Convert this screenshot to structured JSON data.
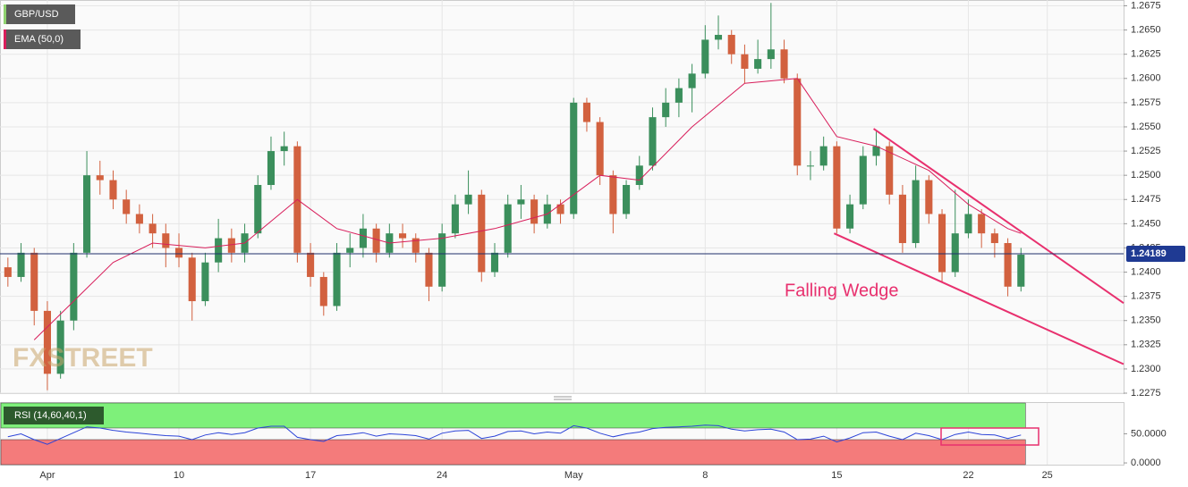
{
  "chart_data": {
    "type": "candlestick",
    "symbol": "GBP/USD",
    "indicator": "EMA (50,0)",
    "watermark": "FXSTREET",
    "x": [
      -1.5,
      -1,
      -0.5,
      0,
      0.5,
      1,
      1.5,
      2,
      2.5,
      3,
      3.5,
      4,
      4.5,
      5,
      5.5,
      6,
      6.5,
      7,
      7.5,
      8,
      8.5,
      9,
      9.5,
      10,
      10.5,
      11,
      11.5,
      12,
      12.5,
      13,
      13.5,
      14,
      14.5,
      15,
      15.5,
      16,
      16.5,
      17,
      17.5,
      18,
      18.5,
      19,
      19.5,
      20,
      20.5,
      21,
      21.5,
      22,
      22.5,
      23,
      23.5,
      24,
      24.5,
      25,
      25.5,
      26,
      26.5,
      27,
      27.5,
      28,
      28.5,
      29,
      29.5,
      30,
      30.5,
      31,
      31.5,
      32,
      32.5,
      33,
      33.5,
      34,
      34.5,
      35,
      35.5,
      36,
      36.5,
      37
    ],
    "ohlc": [
      [
        1.2405,
        1.2415,
        1.2385,
        1.2395
      ],
      [
        1.2395,
        1.243,
        1.239,
        1.242
      ],
      [
        1.242,
        1.2425,
        1.2345,
        1.236
      ],
      [
        1.236,
        1.237,
        1.2278,
        1.2295
      ],
      [
        1.2295,
        1.236,
        1.229,
        1.235
      ],
      [
        1.235,
        1.243,
        1.234,
        1.242
      ],
      [
        1.242,
        1.2525,
        1.2415,
        1.25
      ],
      [
        1.25,
        1.2515,
        1.248,
        1.2495
      ],
      [
        1.2495,
        1.2505,
        1.2465,
        1.2475
      ],
      [
        1.2475,
        1.2485,
        1.245,
        1.246
      ],
      [
        1.246,
        1.247,
        1.244,
        1.245
      ],
      [
        1.245,
        1.246,
        1.2425,
        1.244
      ],
      [
        1.244,
        1.245,
        1.2405,
        1.2425
      ],
      [
        1.2425,
        1.244,
        1.2405,
        1.2415
      ],
      [
        1.2415,
        1.242,
        1.235,
        1.237
      ],
      [
        1.237,
        1.242,
        1.2365,
        1.241
      ],
      [
        1.241,
        1.2455,
        1.24,
        1.2435
      ],
      [
        1.2435,
        1.2445,
        1.241,
        1.242
      ],
      [
        1.242,
        1.245,
        1.241,
        1.244
      ],
      [
        1.244,
        1.25,
        1.2435,
        1.249
      ],
      [
        1.249,
        1.254,
        1.2485,
        1.2525
      ],
      [
        1.2525,
        1.2545,
        1.251,
        1.253
      ],
      [
        1.253,
        1.2535,
        1.241,
        1.242
      ],
      [
        1.242,
        1.243,
        1.2385,
        1.2395
      ],
      [
        1.2395,
        1.24,
        1.2355,
        1.2365
      ],
      [
        1.2365,
        1.243,
        1.236,
        1.242
      ],
      [
        1.242,
        1.244,
        1.2405,
        1.2425
      ],
      [
        1.2425,
        1.246,
        1.2415,
        1.2445
      ],
      [
        1.2445,
        1.245,
        1.241,
        1.242
      ],
      [
        1.242,
        1.245,
        1.2415,
        1.244
      ],
      [
        1.244,
        1.245,
        1.2425,
        1.2435
      ],
      [
        1.2435,
        1.244,
        1.241,
        1.242
      ],
      [
        1.242,
        1.2425,
        1.237,
        1.2385
      ],
      [
        1.2385,
        1.245,
        1.238,
        1.244
      ],
      [
        1.244,
        1.248,
        1.2435,
        1.247
      ],
      [
        1.247,
        1.2505,
        1.246,
        1.248
      ],
      [
        1.248,
        1.2485,
        1.239,
        1.24
      ],
      [
        1.24,
        1.243,
        1.2395,
        1.242
      ],
      [
        1.242,
        1.248,
        1.2415,
        1.247
      ],
      [
        1.247,
        1.249,
        1.2455,
        1.2475
      ],
      [
        1.2475,
        1.248,
        1.244,
        1.245
      ],
      [
        1.245,
        1.248,
        1.2445,
        1.247
      ],
      [
        1.247,
        1.2475,
        1.245,
        1.246
      ],
      [
        1.246,
        1.258,
        1.2455,
        1.2575
      ],
      [
        1.2575,
        1.258,
        1.2545,
        1.2555
      ],
      [
        1.2555,
        1.256,
        1.249,
        1.25
      ],
      [
        1.25,
        1.2505,
        1.244,
        1.246
      ],
      [
        1.246,
        1.2495,
        1.2455,
        1.249
      ],
      [
        1.249,
        1.252,
        1.2485,
        1.251
      ],
      [
        1.251,
        1.257,
        1.2505,
        1.256
      ],
      [
        1.256,
        1.259,
        1.255,
        1.2575
      ],
      [
        1.2575,
        1.26,
        1.256,
        1.259
      ],
      [
        1.259,
        1.2615,
        1.2565,
        1.2605
      ],
      [
        1.2605,
        1.2655,
        1.26,
        1.264
      ],
      [
        1.264,
        1.2665,
        1.263,
        1.2645
      ],
      [
        1.2645,
        1.265,
        1.2615,
        1.2625
      ],
      [
        1.2625,
        1.2635,
        1.2595,
        1.261
      ],
      [
        1.261,
        1.264,
        1.2605,
        1.262
      ],
      [
        1.262,
        1.2678,
        1.261,
        1.263
      ],
      [
        1.263,
        1.264,
        1.2595,
        1.26
      ],
      [
        1.26,
        1.2605,
        1.25,
        1.251
      ],
      [
        1.251,
        1.2525,
        1.2495,
        1.251
      ],
      [
        1.251,
        1.254,
        1.2505,
        1.253
      ],
      [
        1.253,
        1.2535,
        1.244,
        1.2445
      ],
      [
        1.2445,
        1.248,
        1.244,
        1.247
      ],
      [
        1.247,
        1.253,
        1.2465,
        1.252
      ],
      [
        1.252,
        1.2545,
        1.251,
        1.253
      ],
      [
        1.253,
        1.2535,
        1.247,
        1.248
      ],
      [
        1.248,
        1.249,
        1.242,
        1.243
      ],
      [
        1.243,
        1.251,
        1.2425,
        1.2495
      ],
      [
        1.2495,
        1.25,
        1.245,
        1.246
      ],
      [
        1.246,
        1.2465,
        1.239,
        1.24
      ],
      [
        1.24,
        1.2485,
        1.2395,
        1.244
      ],
      [
        1.244,
        1.2475,
        1.2435,
        1.246
      ],
      [
        1.246,
        1.2465,
        1.2425,
        1.244
      ],
      [
        1.244,
        1.2445,
        1.2415,
        1.243
      ],
      [
        1.243,
        1.2435,
        1.2375,
        1.2385
      ],
      [
        1.2385,
        1.2425,
        1.238,
        1.2418
      ]
    ],
    "up_color": "#3b8f5c",
    "down_color": "#d2613f",
    "ema": {
      "x": [
        -0.5,
        1,
        2.5,
        4,
        6,
        7.5,
        9.5,
        11,
        13,
        15,
        17,
        19,
        21,
        22.5,
        24.5,
        26.5,
        28.5,
        30,
        31.5,
        33.5,
        35,
        36.5,
        37
      ],
      "values": [
        1.233,
        1.237,
        1.241,
        1.243,
        1.2425,
        1.243,
        1.2475,
        1.2445,
        1.243,
        1.2435,
        1.2445,
        1.246,
        1.25,
        1.2495,
        1.255,
        1.2595,
        1.26,
        1.254,
        1.253,
        1.2505,
        1.247,
        1.2445,
        1.244
      ],
      "color": "#d81e5b"
    },
    "last_price": 1.24189,
    "xlim": [
      -1.8,
      40.9
    ],
    "ylim": [
      1.2275,
      1.2681
    ],
    "yticks": [
      1.2275,
      {
        "value": 1.23,
        "label": "1.2300"
      },
      1.2325,
      {
        "value": 1.235,
        "label": "1.2350"
      },
      1.2375,
      {
        "value": 1.24,
        "label": "1.2400"
      },
      1.2425,
      {
        "value": 1.245,
        "label": "1.2450"
      },
      1.2475,
      {
        "value": 1.25,
        "label": "1.2500"
      },
      1.2525,
      {
        "value": 1.255,
        "label": "1.2550"
      },
      1.2575,
      {
        "value": 1.26,
        "label": "1.2600"
      },
      1.2625,
      {
        "value": 1.265,
        "label": "1.2650"
      },
      1.2675
    ],
    "xticks": [
      {
        "value": 0,
        "label": "Apr"
      },
      {
        "value": 5,
        "label": "10"
      },
      {
        "value": 10,
        "label": "17"
      },
      {
        "value": 15,
        "label": "24"
      },
      {
        "value": 20,
        "label": "May"
      },
      {
        "value": 25,
        "label": "8"
      },
      {
        "value": 30,
        "label": "15"
      },
      {
        "value": 35,
        "label": "22"
      },
      {
        "value": 38,
        "label": "25"
      }
    ],
    "grid": true,
    "trendlines": [
      {
        "x": [
          31.4,
          40.9
        ],
        "values": [
          1.2548,
          1.2368
        ]
      },
      {
        "x": [
          29.9,
          40.9
        ],
        "values": [
          1.244,
          1.2305
        ]
      }
    ],
    "trendline_color": "#e8306e",
    "annotation": "Falling Wedge",
    "rsi": {
      "label": "RSI (14,60,40,1)",
      "color": "#2c44d8",
      "ylim": [
        -3,
        103
      ],
      "upper": 60,
      "lower": 40,
      "yticks": [
        {
          "value": 50,
          "label": "50.0000"
        },
        {
          "value": 0,
          "label": "0.0000"
        }
      ],
      "values": [
        45,
        50,
        40,
        32,
        42,
        52,
        62,
        60,
        56,
        53,
        51,
        49,
        47,
        46,
        40,
        48,
        52,
        49,
        52,
        60,
        63,
        63,
        44,
        40,
        37,
        47,
        49,
        52,
        46,
        50,
        49,
        47,
        41,
        51,
        55,
        56,
        42,
        46,
        54,
        55,
        50,
        53,
        51,
        64,
        60,
        51,
        45,
        50,
        53,
        59,
        61,
        62,
        63,
        65,
        64,
        58,
        55,
        57,
        58,
        53,
        40,
        41,
        46,
        36,
        43,
        52,
        53,
        46,
        40,
        51,
        47,
        40,
        49,
        53,
        49,
        48,
        42,
        48
      ]
    }
  }
}
